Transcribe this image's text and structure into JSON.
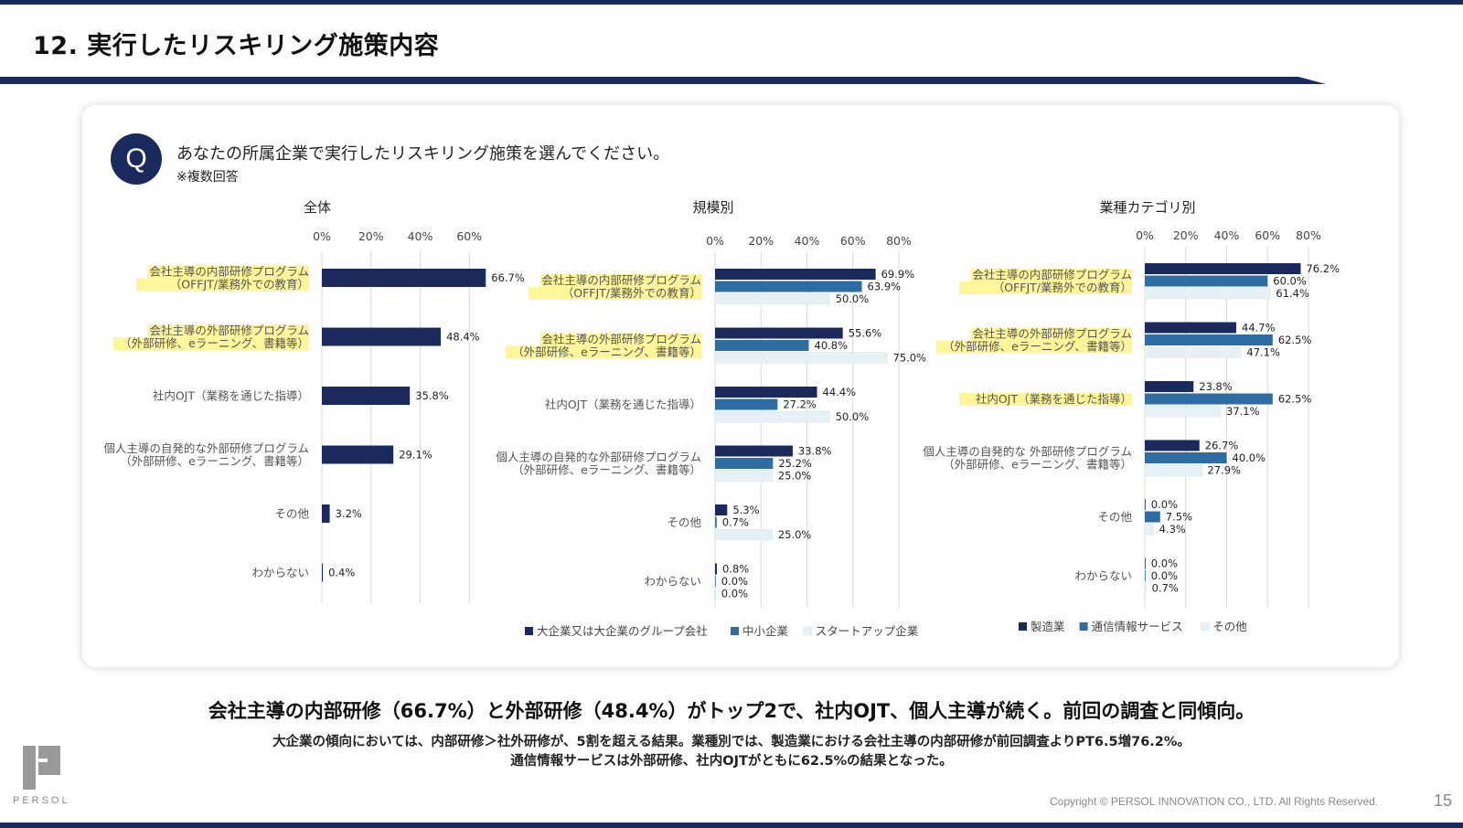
{
  "page": {
    "title": "12. 実行したリスキリング施策内容",
    "page_number": "15",
    "copyright": "Copyright © PERSOL INNOVATION CO., LTD. All Rights Reserved.",
    "logo_text": "PERSOL"
  },
  "question": {
    "badge": "Q",
    "text": "あなたの所属企業で実行したリスキリング施策を選んでください。",
    "note": "※複数回答"
  },
  "summary": {
    "headline": "会社主導の内部研修（66.7%）と外部研修（48.4%）がトップ2で、社内OJT、個人主導が続く。前回の調査と同傾向。",
    "line1": "大企業の傾向においては、内部研修＞社外研修が、5割を超える結果。業種別では、製造業における会社主導の内部研修が前回調査よりPT6.5増76.2%。",
    "line2": "通信情報サービスは外部研修、社内OJTがともに62.5%の結果となった。"
  },
  "colors": {
    "navy": "#1b2a5c",
    "mid": "#2e6da4",
    "light": "#e6f1f6",
    "highlight": "#fff59a",
    "grid": "#d9d9d9"
  },
  "chart_data": [
    {
      "type": "bar",
      "orientation": "horizontal",
      "title": "全体",
      "categories": [
        [
          "会社主導の内部研修プログラム",
          "（OFFJT/業務外での教育）"
        ],
        [
          "会社主導の外部研修プログラム",
          "（外部研修、eラーニング、書籍等）"
        ],
        [
          "社内OJT（業務を通じた指導）"
        ],
        [
          "個人主導の自発的な外部研修プログラム",
          "（外部研修、eラーニング、書籍等）"
        ],
        [
          "その他"
        ],
        [
          "わからない"
        ]
      ],
      "highlighted": [
        true,
        true,
        false,
        false,
        false,
        false
      ],
      "series": [
        {
          "values": [
            66.7,
            48.4,
            35.8,
            29.1,
            3.2,
            0.4
          ],
          "color": "#1b2a5c"
        }
      ],
      "xticks": [
        "0%",
        "20%",
        "40%",
        "60%"
      ],
      "xlim": [
        0,
        80
      ],
      "value_suffix": "%",
      "grid": true
    },
    {
      "type": "bar",
      "orientation": "horizontal",
      "title": "規模別",
      "categories": [
        [
          "会社主導の内部研修プログラム",
          "（OFFJT/業務外での教育）"
        ],
        [
          "会社主導の外部研修プログラム",
          "（外部研修、eラーニング、書籍等）"
        ],
        [
          "社内OJT（業務を通じた指導）"
        ],
        [
          "個人主導の自発的な外部研修プログラム",
          "（外部研修、eラーニング、書籍等）"
        ],
        [
          "その他"
        ],
        [
          "わからない"
        ]
      ],
      "highlighted": [
        true,
        true,
        false,
        false,
        false,
        false
      ],
      "series": [
        {
          "name": "大企業又は大企業のグループ会社",
          "values": [
            69.9,
            55.6,
            44.4,
            33.8,
            5.3,
            0.8
          ],
          "color": "#1b2a5c"
        },
        {
          "name": "中小企業",
          "values": [
            63.9,
            40.8,
            27.2,
            25.2,
            0.7,
            0.0
          ],
          "color": "#2e6da4"
        },
        {
          "name": "スタートアップ企業",
          "values": [
            50.0,
            75.0,
            50.0,
            25.0,
            25.0,
            0.0
          ],
          "color": "#e6f1f6"
        }
      ],
      "xticks": [
        "0%",
        "20%",
        "40%",
        "60%",
        "80%"
      ],
      "xlim": [
        0,
        80
      ],
      "value_suffix": "%",
      "grid": true,
      "legend": "bottom"
    },
    {
      "type": "bar",
      "orientation": "horizontal",
      "title": "業種カテゴリ別",
      "categories": [
        [
          "会社主導の内部研修プログラム",
          "（OFFJT/業務外での教育）"
        ],
        [
          "会社主導の外部研修プログラム",
          "（外部研修、eラーニング、書籍等）"
        ],
        [
          "社内OJT（業務を通じた指導）"
        ],
        [
          "個人主導の自発的な 外部研修プログラム",
          "（外部研修、eラーニング、書籍等）"
        ],
        [
          "その他"
        ],
        [
          "わからない"
        ]
      ],
      "highlighted": [
        true,
        true,
        true,
        false,
        false,
        false
      ],
      "series": [
        {
          "name": "製造業",
          "values": [
            76.2,
            44.7,
            23.8,
            26.7,
            0.0,
            0.0
          ],
          "color": "#1b2a5c"
        },
        {
          "name": "通信情報サービス",
          "values": [
            60.0,
            62.5,
            62.5,
            40.0,
            7.5,
            0.0
          ],
          "color": "#2e6da4"
        },
        {
          "name": "その他",
          "values": [
            61.4,
            47.1,
            37.1,
            27.9,
            4.3,
            0.7
          ],
          "color": "#e6f1f6"
        }
      ],
      "xticks": [
        "0%",
        "20%",
        "40%",
        "60%",
        "80%"
      ],
      "xlim": [
        0,
        80
      ],
      "value_suffix": "%",
      "grid": true,
      "legend": "bottom"
    }
  ]
}
